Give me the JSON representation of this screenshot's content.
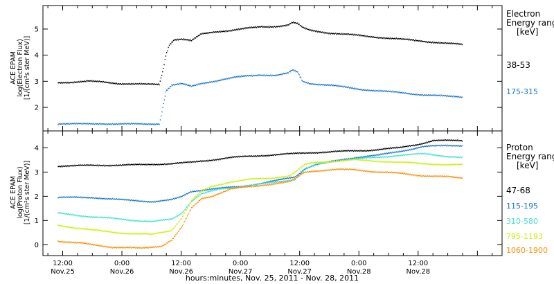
{
  "chart_data": [
    {
      "type": "scatter",
      "panel": "electron",
      "ylabel_lines": [
        "ACE EPAM",
        "log(Electron Flux)",
        "[1/(cm²s ster MeV)]"
      ],
      "ylim": [
        1.1,
        5.9
      ],
      "yticks": [
        2,
        3,
        4,
        5
      ],
      "legend_title": [
        "Electron",
        "Energy ranges",
        "[keV]"
      ],
      "series": [
        {
          "name": "38-53",
          "color": "#000000",
          "points": [
            [
              11.0,
              2.95
            ],
            [
              14,
              2.97
            ],
            [
              17,
              3.0
            ],
            [
              20,
              2.97
            ],
            [
              23,
              2.92
            ],
            [
              26,
              2.9
            ],
            [
              29,
              2.88
            ],
            [
              31.5,
              2.88
            ],
            [
              32.3,
              3.5
            ],
            [
              32.8,
              4.0
            ],
            [
              33.5,
              4.4
            ],
            [
              34.5,
              4.6
            ],
            [
              36,
              4.62
            ],
            [
              38,
              4.55
            ],
            [
              40,
              4.8
            ],
            [
              43,
              4.9
            ],
            [
              46,
              4.95
            ],
            [
              49,
              5.02
            ],
            [
              52,
              5.08
            ],
            [
              55,
              5.1
            ],
            [
              57.5,
              5.15
            ],
            [
              58.5,
              5.25
            ],
            [
              59.5,
              5.2
            ],
            [
              60.5,
              5.05
            ],
            [
              62,
              4.95
            ],
            [
              66,
              4.85
            ],
            [
              72,
              4.75
            ],
            [
              78,
              4.65
            ],
            [
              84,
              4.55
            ],
            [
              90,
              4.45
            ],
            [
              93,
              4.4
            ]
          ]
        },
        {
          "name": "175-315",
          "color": "#1874cd",
          "points": [
            [
              11.0,
              1.38
            ],
            [
              14,
              1.37
            ],
            [
              17,
              1.36
            ],
            [
              20,
              1.38
            ],
            [
              23,
              1.37
            ],
            [
              26,
              1.36
            ],
            [
              29,
              1.36
            ],
            [
              31.5,
              1.38
            ],
            [
              32.2,
              2.0
            ],
            [
              32.8,
              2.6
            ],
            [
              34,
              2.85
            ],
            [
              36,
              2.9
            ],
            [
              38,
              2.8
            ],
            [
              40,
              2.92
            ],
            [
              43,
              3.02
            ],
            [
              46,
              3.12
            ],
            [
              49,
              3.2
            ],
            [
              52,
              3.25
            ],
            [
              55,
              3.22
            ],
            [
              57.5,
              3.3
            ],
            [
              58.5,
              3.42
            ],
            [
              59.5,
              3.35
            ],
            [
              60.5,
              3.0
            ],
            [
              62,
              2.92
            ],
            [
              66,
              2.85
            ],
            [
              72,
              2.7
            ],
            [
              78,
              2.6
            ],
            [
              84,
              2.5
            ],
            [
              90,
              2.42
            ],
            [
              93,
              2.4
            ]
          ]
        }
      ]
    },
    {
      "type": "scatter",
      "panel": "proton",
      "ylabel_lines": [
        "ACE EPAM",
        "log(Proton Flux)",
        "[1/(cm²s ster MeV)]"
      ],
      "ylim": [
        -0.45,
        4.7
      ],
      "yticks": [
        0,
        1,
        2,
        3,
        4
      ],
      "legend_title": [
        "Proton",
        "Energy ranges",
        "[keV]"
      ],
      "series": [
        {
          "name": "47-68",
          "color": "#000000",
          "points": [
            [
              11.0,
              3.25
            ],
            [
              20,
              3.28
            ],
            [
              28,
              3.3
            ],
            [
              34,
              3.35
            ],
            [
              38,
              3.4
            ],
            [
              42,
              3.5
            ],
            [
              46,
              3.6
            ],
            [
              52,
              3.68
            ],
            [
              58,
              3.75
            ],
            [
              62,
              3.8
            ],
            [
              68,
              3.85
            ],
            [
              74,
              3.9
            ],
            [
              80,
              4.0
            ],
            [
              84,
              4.15
            ],
            [
              87,
              4.3
            ],
            [
              90,
              4.3
            ],
            [
              93,
              4.3
            ]
          ]
        },
        {
          "name": "115-195",
          "color": "#1874cd",
          "points": [
            [
              11.0,
              1.95
            ],
            [
              18,
              1.95
            ],
            [
              24,
              1.85
            ],
            [
              30,
              1.78
            ],
            [
              34,
              1.85
            ],
            [
              36,
              1.98
            ],
            [
              38,
              2.2
            ],
            [
              42,
              2.3
            ],
            [
              48,
              2.4
            ],
            [
              54,
              2.6
            ],
            [
              59,
              2.8
            ],
            [
              61,
              3.15
            ],
            [
              63,
              3.3
            ],
            [
              67,
              3.45
            ],
            [
              71,
              3.6
            ],
            [
              76,
              3.7
            ],
            [
              80,
              3.85
            ],
            [
              85,
              4.05
            ],
            [
              90,
              4.1
            ],
            [
              93,
              4.1
            ]
          ]
        },
        {
          "name": "310-580",
          "color": "#40e0d0",
          "points": [
            [
              11.0,
              1.3
            ],
            [
              18,
              1.15
            ],
            [
              24,
              1.05
            ],
            [
              30,
              0.95
            ],
            [
              34,
              1.05
            ],
            [
              36,
              1.3
            ],
            [
              38,
              1.8
            ],
            [
              40,
              2.1
            ],
            [
              44,
              2.3
            ],
            [
              48,
              2.4
            ],
            [
              54,
              2.55
            ],
            [
              59,
              2.7
            ],
            [
              61,
              3.1
            ],
            [
              63,
              3.3
            ],
            [
              67,
              3.45
            ],
            [
              71,
              3.55
            ],
            [
              76,
              3.6
            ],
            [
              80,
              3.7
            ],
            [
              85,
              3.75
            ],
            [
              90,
              3.65
            ],
            [
              93,
              3.6
            ]
          ]
        },
        {
          "name": "795-1193",
          "color": "#c8f000",
          "points": [
            [
              11.0,
              0.8
            ],
            [
              18,
              0.6
            ],
            [
              24,
              0.48
            ],
            [
              30,
              0.42
            ],
            [
              34,
              0.6
            ],
            [
              36,
              1.1
            ],
            [
              38,
              1.8
            ],
            [
              40,
              2.2
            ],
            [
              42,
              2.4
            ],
            [
              46,
              2.6
            ],
            [
              50,
              2.7
            ],
            [
              54,
              2.75
            ],
            [
              58,
              2.85
            ],
            [
              61,
              3.3
            ],
            [
              63,
              3.4
            ],
            [
              67,
              3.45
            ],
            [
              71,
              3.5
            ],
            [
              76,
              3.45
            ],
            [
              80,
              3.4
            ],
            [
              85,
              3.35
            ],
            [
              90,
              3.3
            ],
            [
              93,
              3.3
            ]
          ]
        },
        {
          "name": "1060-1900",
          "color": "#ff8c00",
          "points": [
            [
              11.0,
              0.15
            ],
            [
              16,
              0.05
            ],
            [
              22,
              -0.1
            ],
            [
              28,
              -0.15
            ],
            [
              32,
              -0.05
            ],
            [
              34,
              0.2
            ],
            [
              36,
              0.7
            ],
            [
              38,
              1.5
            ],
            [
              40,
              1.9
            ],
            [
              42,
              2.0
            ],
            [
              46,
              2.3
            ],
            [
              50,
              2.4
            ],
            [
              54,
              2.5
            ],
            [
              58,
              2.6
            ],
            [
              61,
              3.0
            ],
            [
              63,
              3.05
            ],
            [
              67,
              3.1
            ],
            [
              71,
              3.1
            ],
            [
              76,
              3.0
            ],
            [
              80,
              2.95
            ],
            [
              85,
              2.85
            ],
            [
              90,
              2.8
            ],
            [
              93,
              2.75
            ]
          ]
        }
      ]
    }
  ],
  "x_axis": {
    "xlim": [
      8.0,
      101.0
    ],
    "ticks": [
      {
        "hours": 12,
        "time": "12:00",
        "date": "Nov.25"
      },
      {
        "hours": 24,
        "time": "0:00",
        "date": "Nov.26"
      },
      {
        "hours": 36,
        "time": "12:00",
        "date": "Nov.26"
      },
      {
        "hours": 48,
        "time": "0:00",
        "date": "Nov.27"
      },
      {
        "hours": 60,
        "time": "12:00",
        "date": "Nov.27"
      },
      {
        "hours": 72,
        "time": "0:00",
        "date": "Nov.28"
      },
      {
        "hours": 84,
        "time": "12:00",
        "date": "Nov.28"
      }
    ],
    "xlabel": "hours:minutes, Nov. 25, 2011 - Nov. 28, 2011"
  }
}
